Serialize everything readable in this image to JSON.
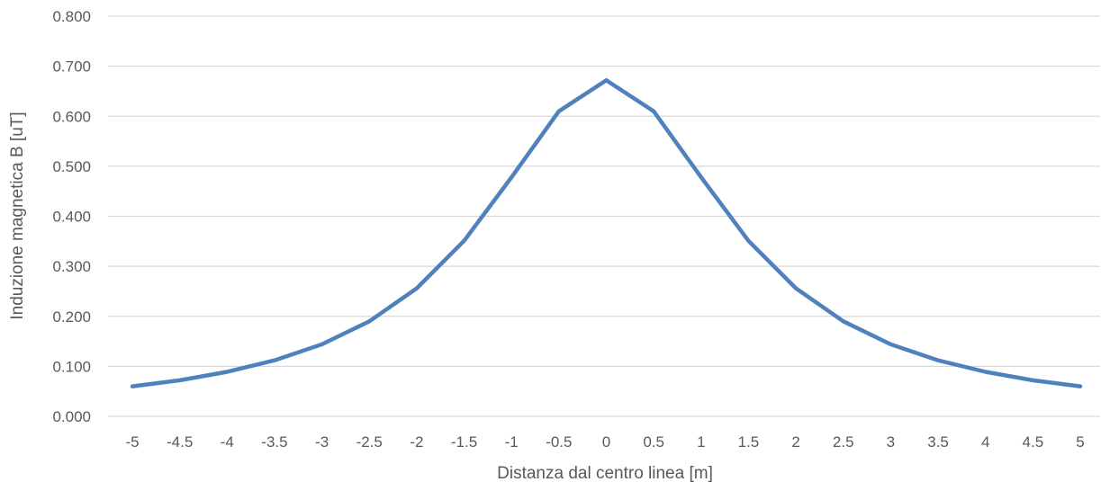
{
  "chart_data": {
    "type": "line",
    "title": "",
    "xlabel": "Distanza dal centro linea [m]",
    "ylabel": "Induzione magnetica B [uT]",
    "ylim": [
      0,
      0.8
    ],
    "yticks": [
      "0.000",
      "0.100",
      "0.200",
      "0.300",
      "0.400",
      "0.500",
      "0.600",
      "0.700",
      "0.800"
    ],
    "ytick_values": [
      0,
      0.1,
      0.2,
      0.3,
      0.4,
      0.5,
      0.6,
      0.7,
      0.8
    ],
    "categories": [
      "-5",
      "-4.5",
      "-4",
      "-3.5",
      "-3",
      "-2.5",
      "-2",
      "-1.5",
      "-1",
      "-0.5",
      "0",
      "0.5",
      "1",
      "1.5",
      "2",
      "2.5",
      "3",
      "3.5",
      "4",
      "4.5",
      "5"
    ],
    "grid": true,
    "legend": "none",
    "series": [
      {
        "color": "#4f81bd",
        "values": [
          0.06,
          0.072,
          0.089,
          0.112,
          0.144,
          0.19,
          0.256,
          0.351,
          0.478,
          0.61,
          0.672,
          0.61,
          0.478,
          0.351,
          0.256,
          0.19,
          0.144,
          0.112,
          0.089,
          0.072,
          0.06
        ]
      }
    ]
  }
}
